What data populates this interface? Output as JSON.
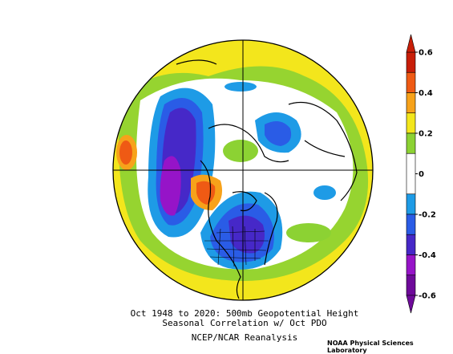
{
  "caption": {
    "line1": "Oct 1948 to 2020: 500mb Geopotential Height",
    "line2": "Seasonal Correlation w/ Oct PDO",
    "line3": "NCEP/NCAR Reanalysis"
  },
  "credit": "NOAA Physical Sciences Laboratory",
  "chart_data": {
    "type": "heatmap",
    "projection": "north-polar-stereographic",
    "colorbar": {
      "ticks": [
        "0.6",
        "0.4",
        "0.2",
        "0",
        "-0.2",
        "-0.4",
        "-0.6"
      ],
      "range": [
        -0.6,
        0.6
      ],
      "bins": [
        {
          "min": 0.5,
          "max": 0.6,
          "color": "#c81e08"
        },
        {
          "min": 0.4,
          "max": 0.5,
          "color": "#ef5a14"
        },
        {
          "min": 0.3,
          "max": 0.4,
          "color": "#f7a21a"
        },
        {
          "min": 0.2,
          "max": 0.3,
          "color": "#f3e61c"
        },
        {
          "min": 0.1,
          "max": 0.2,
          "color": "#8cd233"
        },
        {
          "min": -0.1,
          "max": 0.1,
          "color": "#ffffff"
        },
        {
          "min": -0.2,
          "max": -0.1,
          "color": "#1e9be6"
        },
        {
          "min": -0.3,
          "max": -0.2,
          "color": "#2a5ce6"
        },
        {
          "min": -0.4,
          "max": -0.3,
          "color": "#4628c8"
        },
        {
          "min": -0.5,
          "max": -0.4,
          "color": "#9614c8"
        },
        {
          "min": -0.6,
          "max": -0.5,
          "color": "#6e0a9a"
        }
      ]
    }
  }
}
